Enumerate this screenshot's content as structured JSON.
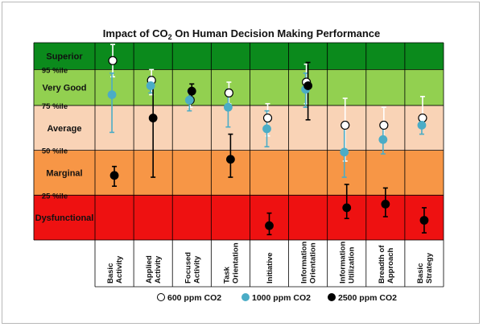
{
  "chart_data": {
    "type": "scatter",
    "title": "Impact of CO",
    "title_sub": "2",
    "title_rest": " On Human Decision Making Performance",
    "bands": [
      {
        "label": "Superior",
        "from": 95,
        "to": 110,
        "color": "#0b8a1c"
      },
      {
        "label": "Very Good",
        "from": 75,
        "to": 95,
        "color": "#92d050"
      },
      {
        "label": "Average",
        "from": 50,
        "to": 75,
        "color": "#f9d3b6"
      },
      {
        "label": "Marginal",
        "from": 25,
        "to": 50,
        "color": "#f79646"
      },
      {
        "label": "Dysfunctional",
        "from": 0,
        "to": 25,
        "color": "#ee1111"
      }
    ],
    "percentile_labels": [
      "95 %ile",
      "75 %ile",
      "50 %ile",
      "25 %ile"
    ],
    "percentile_values": [
      95,
      75,
      50,
      25
    ],
    "ylim": [
      0,
      110
    ],
    "categories": [
      "Basic\nActivity",
      "Applied\nActivity",
      "Focused\nActivity",
      "Task\nOrientation",
      "Initiative",
      "Information\nOrientation",
      "Information\nUtilization",
      "Breadth of\nApproach",
      "Basic\nStrategy"
    ],
    "series": [
      {
        "name": "600 ppm CO2",
        "color": "#ffffff",
        "stroke": "#000000",
        "error_color": "#ffffff",
        "values": [
          100,
          89,
          78,
          82,
          68,
          88,
          64,
          64,
          68
        ],
        "error_low": [
          91,
          81,
          74,
          76,
          58,
          76,
          44,
          56,
          64
        ],
        "error_high": [
          109,
          95,
          82,
          88,
          76,
          98,
          79,
          74,
          80
        ]
      },
      {
        "name": "1000 ppm CO2",
        "color": "#4bacc6",
        "stroke": "#4bacc6",
        "error_color": "#4bacc6",
        "values": [
          81,
          86,
          78,
          74,
          62,
          84,
          49,
          56,
          64
        ],
        "error_low": [
          60,
          82,
          72,
          63,
          52,
          74,
          35,
          48,
          59
        ],
        "error_high": [
          93,
          91,
          83,
          84,
          72,
          93,
          63,
          64,
          69
        ]
      },
      {
        "name": "2500 ppm CO2",
        "color": "#000000",
        "stroke": "#000000",
        "error_color": "#000000",
        "values": [
          36,
          68,
          83,
          45,
          8,
          86,
          18,
          20,
          11
        ],
        "error_low": [
          30,
          35,
          79,
          35,
          3,
          67,
          12,
          13,
          4
        ],
        "error_high": [
          41,
          89,
          87,
          59,
          15,
          99,
          31,
          29,
          18
        ]
      }
    ]
  }
}
